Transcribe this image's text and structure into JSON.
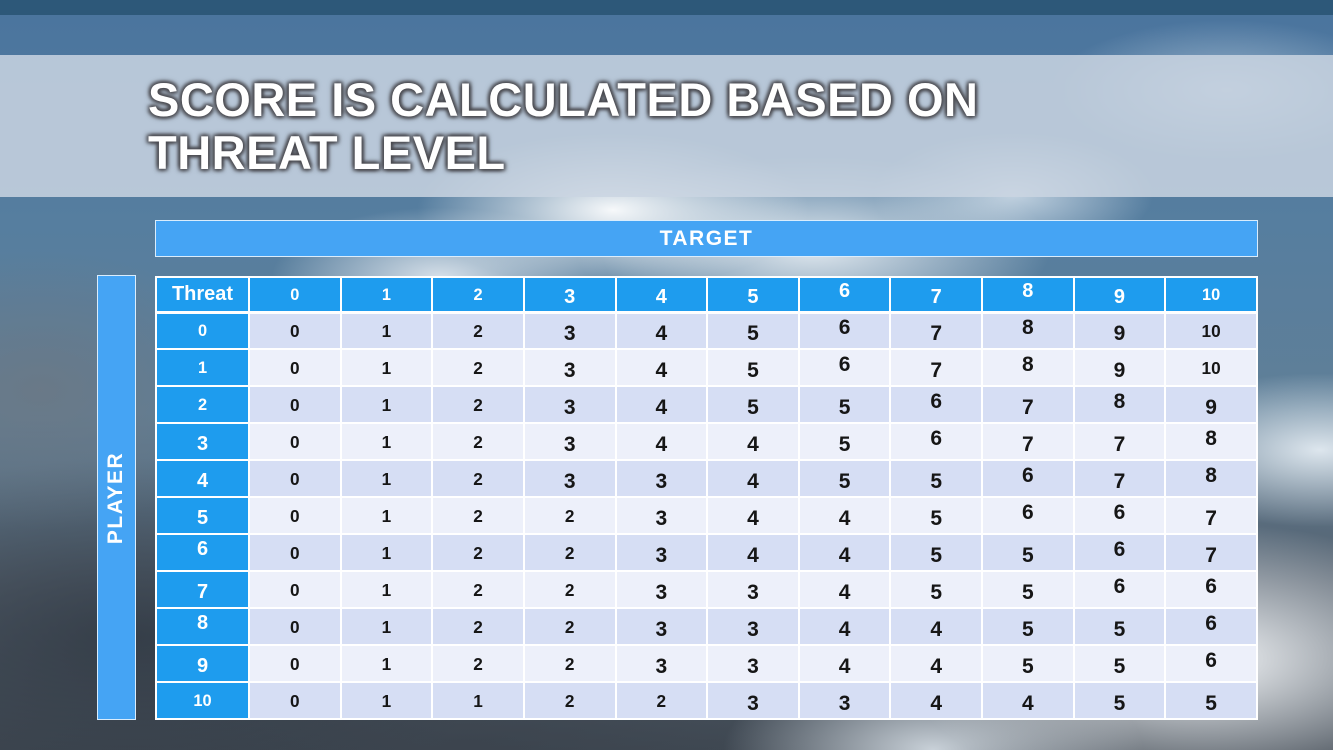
{
  "slide": {
    "title_line1": "SCORE IS CALCULATED BASED ON",
    "title_line2": "THREAT LEVEL"
  },
  "matrix": {
    "target_label": "TARGET",
    "player_label": "PLAYER",
    "corner_label": "Threat",
    "column_headers": [
      "0",
      "1",
      "2",
      "3",
      "4",
      "5",
      "6",
      "7",
      "8",
      "9",
      "10"
    ],
    "rows": [
      {
        "threat": "0",
        "values": [
          "0",
          "1",
          "2",
          "3",
          "4",
          "5",
          "6",
          "7",
          "8",
          "9",
          "10"
        ]
      },
      {
        "threat": "1",
        "values": [
          "0",
          "1",
          "2",
          "3",
          "4",
          "5",
          "6",
          "7",
          "8",
          "9",
          "10"
        ]
      },
      {
        "threat": "2",
        "values": [
          "0",
          "1",
          "2",
          "3",
          "4",
          "5",
          "5",
          "6",
          "7",
          "8",
          "9"
        ]
      },
      {
        "threat": "3",
        "values": [
          "0",
          "1",
          "2",
          "3",
          "4",
          "4",
          "5",
          "6",
          "7",
          "7",
          "8"
        ]
      },
      {
        "threat": "4",
        "values": [
          "0",
          "1",
          "2",
          "3",
          "3",
          "4",
          "5",
          "5",
          "6",
          "7",
          "8"
        ]
      },
      {
        "threat": "5",
        "values": [
          "0",
          "1",
          "2",
          "2",
          "3",
          "4",
          "4",
          "5",
          "6",
          "6",
          "7"
        ]
      },
      {
        "threat": "6",
        "values": [
          "0",
          "1",
          "2",
          "2",
          "3",
          "4",
          "4",
          "5",
          "5",
          "6",
          "7"
        ]
      },
      {
        "threat": "7",
        "values": [
          "0",
          "1",
          "2",
          "2",
          "3",
          "3",
          "4",
          "5",
          "5",
          "6",
          "6"
        ]
      },
      {
        "threat": "8",
        "values": [
          "0",
          "1",
          "2",
          "2",
          "3",
          "3",
          "4",
          "4",
          "5",
          "5",
          "6"
        ]
      },
      {
        "threat": "9",
        "values": [
          "0",
          "1",
          "2",
          "2",
          "3",
          "3",
          "4",
          "4",
          "5",
          "5",
          "6"
        ]
      },
      {
        "threat": "10",
        "values": [
          "0",
          "1",
          "1",
          "2",
          "2",
          "3",
          "3",
          "4",
          "4",
          "5",
          "5"
        ]
      }
    ]
  },
  "chart_data": {
    "type": "table",
    "title": "SCORE IS CALCULATED BASED ON THREAT LEVEL",
    "x_axis_label": "TARGET",
    "y_axis_label": "PLAYER",
    "corner_label": "Threat",
    "columns": [
      0,
      1,
      2,
      3,
      4,
      5,
      6,
      7,
      8,
      9,
      10
    ],
    "row_labels": [
      0,
      1,
      2,
      3,
      4,
      5,
      6,
      7,
      8,
      9,
      10
    ],
    "rows": [
      [
        0,
        1,
        2,
        3,
        4,
        5,
        6,
        7,
        8,
        9,
        10
      ],
      [
        0,
        1,
        2,
        3,
        4,
        5,
        6,
        7,
        8,
        9,
        10
      ],
      [
        0,
        1,
        2,
        3,
        4,
        5,
        5,
        6,
        7,
        8,
        9
      ],
      [
        0,
        1,
        2,
        3,
        4,
        4,
        5,
        6,
        7,
        7,
        8
      ],
      [
        0,
        1,
        2,
        3,
        3,
        4,
        5,
        5,
        6,
        7,
        8
      ],
      [
        0,
        1,
        2,
        2,
        3,
        4,
        4,
        5,
        6,
        6,
        7
      ],
      [
        0,
        1,
        2,
        2,
        3,
        4,
        4,
        5,
        5,
        6,
        7
      ],
      [
        0,
        1,
        2,
        2,
        3,
        3,
        4,
        5,
        5,
        6,
        6
      ],
      [
        0,
        1,
        2,
        2,
        3,
        3,
        4,
        4,
        5,
        5,
        6
      ],
      [
        0,
        1,
        2,
        2,
        3,
        3,
        4,
        4,
        5,
        5,
        6
      ],
      [
        0,
        1,
        1,
        2,
        2,
        3,
        3,
        4,
        4,
        5,
        5
      ]
    ]
  },
  "colors": {
    "header_blue": "#1e9cee",
    "bar_blue": "#45a4f4",
    "row_even": "#d6def4",
    "row_odd": "#edf0fa",
    "top_strip": "#2d5879",
    "title_band": "#cad5e2"
  }
}
